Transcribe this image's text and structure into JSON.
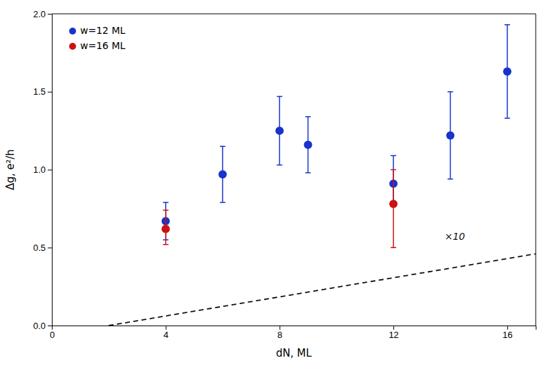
{
  "chart_data": {
    "type": "scatter",
    "xlabel": "dN, ML",
    "ylabel": "Δg, e²/h",
    "xlim": [
      0,
      17
    ],
    "ylim": [
      0,
      2.0
    ],
    "xticks": [
      0,
      4,
      8,
      12,
      16
    ],
    "yticks": [
      {
        "value": 0.0,
        "label": "0.0"
      },
      0.5,
      {
        "value": 1.0,
        "label": "1.0"
      },
      1.5,
      {
        "value": 2.0,
        "label": "2.0"
      }
    ],
    "grid": false,
    "legend": "upper left",
    "series": [
      {
        "name": "w=12 ML",
        "type": "scatter",
        "marker": "circle",
        "color": "#1634cc",
        "x": [
          4,
          6,
          8,
          9,
          12,
          14,
          16
        ],
        "values": [
          0.67,
          0.97,
          1.25,
          1.16,
          0.91,
          1.22,
          1.63
        ],
        "error_lo": [
          0.12,
          0.18,
          0.22,
          0.18,
          0.14,
          0.28,
          0.3
        ],
        "error_hi": [
          0.12,
          0.18,
          0.22,
          0.18,
          0.18,
          0.28,
          0.3
        ]
      },
      {
        "name": "w=16 ML",
        "type": "scatter",
        "marker": "circle",
        "color": "#cc1111",
        "x": [
          4,
          12
        ],
        "values": [
          0.62,
          0.78
        ],
        "error_lo": [
          0.1,
          0.28
        ],
        "error_hi": [
          0.12,
          0.22
        ]
      },
      {
        "type": "line",
        "line_style": "dashed",
        "color": "#111111",
        "x": [
          2.0,
          17.0
        ],
        "values": [
          0.0,
          0.46
        ]
      }
    ],
    "annotations": [
      {
        "text": "×10",
        "x": 13.8,
        "y": 0.535,
        "color": "#111111"
      }
    ]
  }
}
